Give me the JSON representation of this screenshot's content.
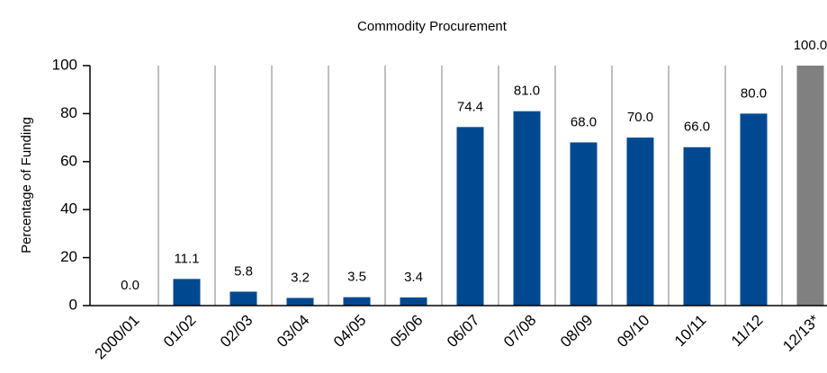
{
  "chart_data": {
    "type": "bar",
    "title": "Commodity Procurement",
    "ylabel": "Percentage of Funding",
    "categories": [
      "2000/01",
      "01/02",
      "02/03",
      "03/04",
      "04/05",
      "05/06",
      "06/07",
      "07/08",
      "08/09",
      "09/10",
      "10/11",
      "11/12",
      "12/13*"
    ],
    "values": [
      0,
      11.1,
      5.8,
      3.2,
      3.5,
      3.4,
      74.4,
      81,
      68,
      70,
      66,
      80,
      100
    ],
    "value_labels": [
      "0.0",
      "11.1",
      "5.8",
      "3.2",
      "3.5",
      "3.4",
      "74.4",
      "81.0",
      "68.0",
      "70.0",
      "66.0",
      "80.0",
      "100.0"
    ],
    "colors": [
      "#004990",
      "#004990",
      "#004990",
      "#004990",
      "#004990",
      "#004990",
      "#004990",
      "#004990",
      "#004990",
      "#004990",
      "#004990",
      "#004990",
      "#808080"
    ],
    "ylim": [
      0,
      100
    ],
    "yticks": [
      0,
      20,
      40,
      60,
      80,
      100
    ],
    "grid": true
  }
}
